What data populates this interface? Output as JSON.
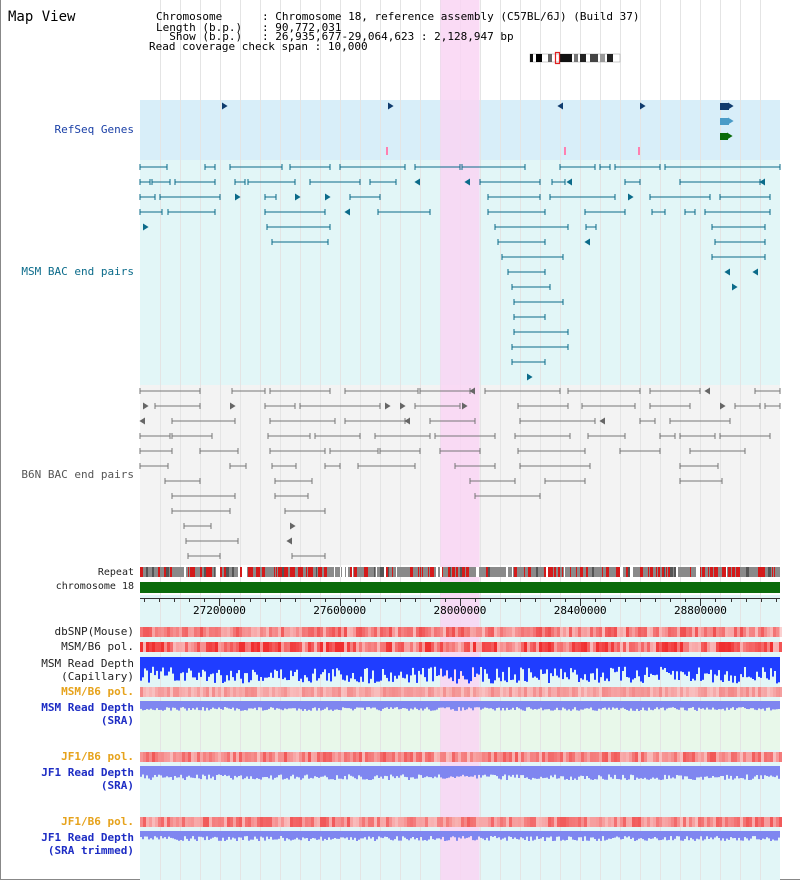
{
  "page_title": "Map View",
  "info": [
    {
      "label": "Chromosome     ",
      "value": "Chromosome 18, reference assembly (C57BL/6J) (Build 37)"
    },
    {
      "label": "Length (b.p.)  ",
      "value": "90,772,031"
    },
    {
      "label": "  Show (b.p.)  ",
      "value": "26,935,677-29,064,623 : 2,128,947 bp"
    },
    {
      "label": "Read coverage check span",
      "value": "10,000"
    }
  ],
  "axis": {
    "range": [
      26935677,
      29064623
    ],
    "tick_labels": [
      "27200000",
      "27600000",
      "28000000",
      "28400000",
      "28800000"
    ],
    "tick_values": [
      27200000,
      27600000,
      28000000,
      28400000,
      28800000
    ],
    "highlight_range": [
      27935000,
      28065000
    ]
  },
  "colors": {
    "refseq_bg": "#d8eef9",
    "msm_bg": "#e2f6f7",
    "b6n_bg": "#f3f3f3",
    "sra_bg": "#e8f8ea",
    "jf1_bg": "#e2f6f7",
    "highlight": "#f9d5f3",
    "refseq_feature": "#0f3b6e",
    "msm_feature": "#0b6b8a",
    "b6n_feature": "#666666",
    "chromosome_bar": "#0a6b0a",
    "snp": "#f05050",
    "depth": "#1f3dff",
    "depth_light": "#7f86f0"
  },
  "tracks": {
    "refseq_genes": "RefSeq Genes",
    "msm_bac_end_pairs": "MSM BAC end pairs",
    "b6n_bac_end_pairs": "B6N BAC end pairs",
    "repeat": "Repeat",
    "chromosome": "chromosome 18",
    "dbsnp": "dbSNP(Mouse)",
    "msm_b6_pol": "MSM/B6 pol.",
    "msm_read_depth_cap": "MSM Read Depth",
    "msm_read_depth_cap_sub": "(Capillary)",
    "msm_b6_pol_2": "MSM/B6 pol.",
    "msm_read_depth_sra": "MSM Read Depth",
    "msm_read_depth_sra_sub": "(SRA)",
    "jf1_b6_pol": "JF1/B6 pol.",
    "jf1_read_depth": "JF1 Read Depth",
    "jf1_read_depth_sub": "(SRA)",
    "jf1_b6_pol_2": "JF1/B6 pol.",
    "jf1_read_depth_trim": "JF1 Read Depth",
    "jf1_read_depth_trim_sub": "(SRA trimmed)"
  }
}
